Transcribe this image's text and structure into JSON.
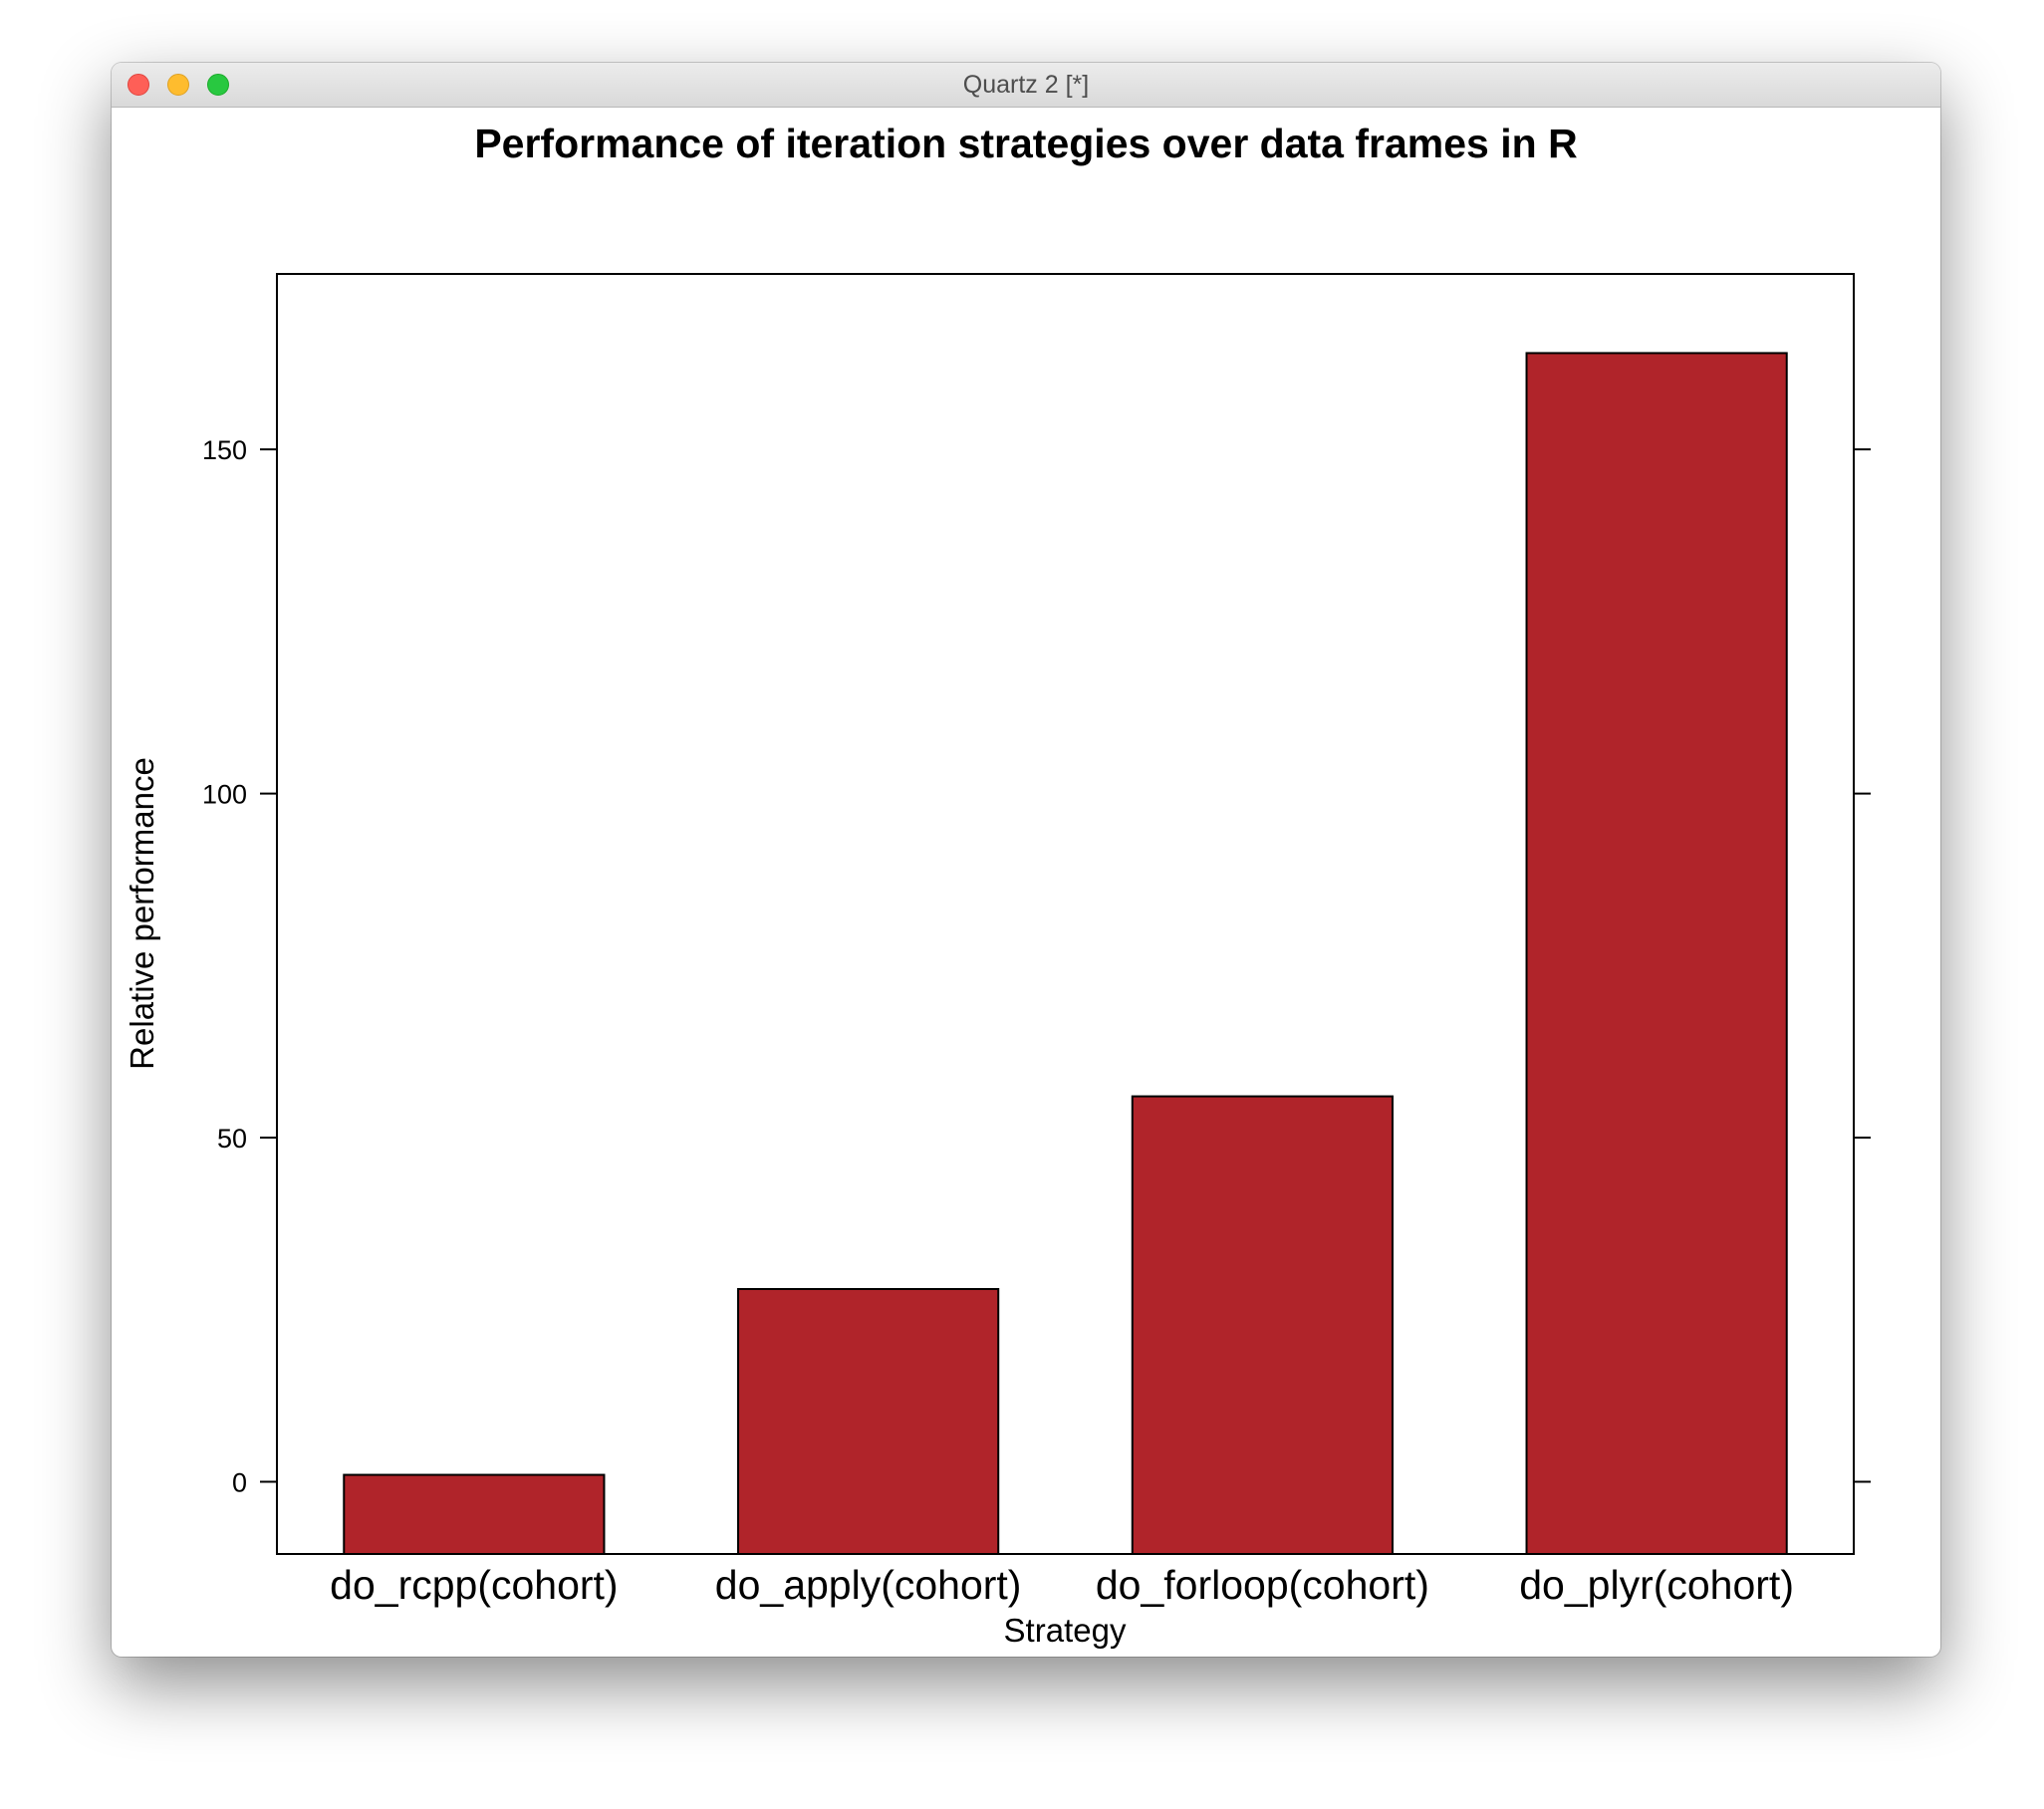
{
  "window": {
    "title": "Quartz 2 [*]"
  },
  "chart_data": {
    "type": "bar",
    "title": "Performance of iteration strategies over data frames in R",
    "xlabel": "Strategy",
    "ylabel": "Relative performance",
    "categories": [
      "do_rcpp(cohort)",
      "do_apply(cohort)",
      "do_forloop(cohort)",
      "do_plyr(cohort)"
    ],
    "values": [
      1,
      28,
      56,
      164
    ],
    "yticks": [
      0,
      50,
      100,
      150
    ],
    "ylim": [
      -10.5,
      175.5
    ],
    "bar_color": "#b0242a",
    "grid": false,
    "legend": "none"
  }
}
